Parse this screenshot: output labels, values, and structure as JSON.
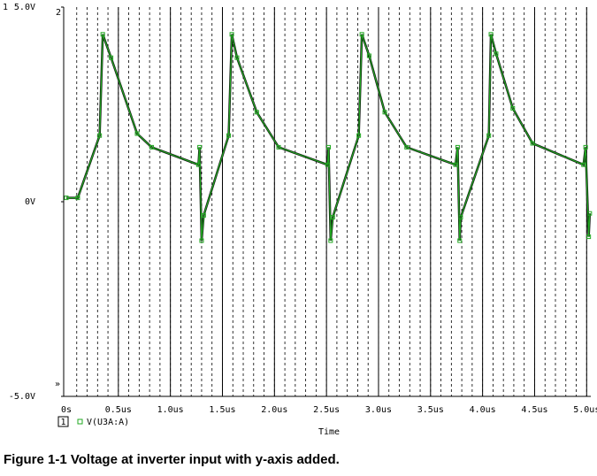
{
  "chart_data": {
    "type": "line",
    "axis_number": "1",
    "axis_number_2": "2",
    "x_label": "Time",
    "scroll_marker": "»",
    "legend_marker": "1",
    "series": [
      {
        "name": "V(U3A:A)",
        "color": "#22aa22",
        "x": [
          0,
          0.11,
          0.32,
          0.35,
          0.43,
          0.68,
          0.82,
          1.27,
          1.28,
          1.3,
          1.32,
          1.56,
          1.59,
          1.64,
          1.83,
          2.04,
          2.51,
          2.52,
          2.54,
          2.56,
          2.81,
          2.84,
          2.91,
          3.06,
          3.27,
          3.74,
          3.76,
          3.78,
          3.79,
          4.06,
          4.08,
          4.13,
          4.29,
          4.48,
          4.97,
          4.99,
          5.02,
          5.03
        ],
        "values": [
          0.1,
          0.1,
          1.7,
          4.3,
          3.7,
          1.75,
          1.4,
          0.95,
          1.4,
          -1.0,
          -0.35,
          1.7,
          4.3,
          3.7,
          2.3,
          1.4,
          0.95,
          1.4,
          -1.0,
          -0.4,
          1.7,
          4.3,
          3.75,
          2.3,
          1.4,
          0.95,
          1.4,
          -1.0,
          -0.4,
          1.7,
          4.3,
          3.8,
          2.4,
          1.5,
          0.95,
          1.4,
          -0.9,
          -0.3
        ]
      }
    ],
    "xlim": [
      0,
      5.04
    ],
    "ylim": [
      -5,
      5
    ],
    "xticks": [
      {
        "value": 0,
        "label": "0s"
      },
      {
        "value": 0.5,
        "label": "0.5us"
      },
      {
        "value": 1.0,
        "label": "1.0us"
      },
      {
        "value": 1.5,
        "label": "1.5us"
      },
      {
        "value": 2.0,
        "label": "2.0us"
      },
      {
        "value": 2.5,
        "label": "2.5us"
      },
      {
        "value": 3.0,
        "label": "3.0us"
      },
      {
        "value": 3.5,
        "label": "3.5us"
      },
      {
        "value": 4.0,
        "label": "4.0us"
      },
      {
        "value": 4.5,
        "label": "4.5us"
      },
      {
        "value": 5.0,
        "label": "5.0us"
      }
    ],
    "yticks": [
      {
        "value": 5,
        "label": "5.0V"
      },
      {
        "value": 0,
        "label": "0V"
      },
      {
        "value": -5,
        "label": "-5.0V"
      }
    ],
    "grid": true
  },
  "caption": "Figure 1-1  Voltage at inverter input with y-axis added."
}
